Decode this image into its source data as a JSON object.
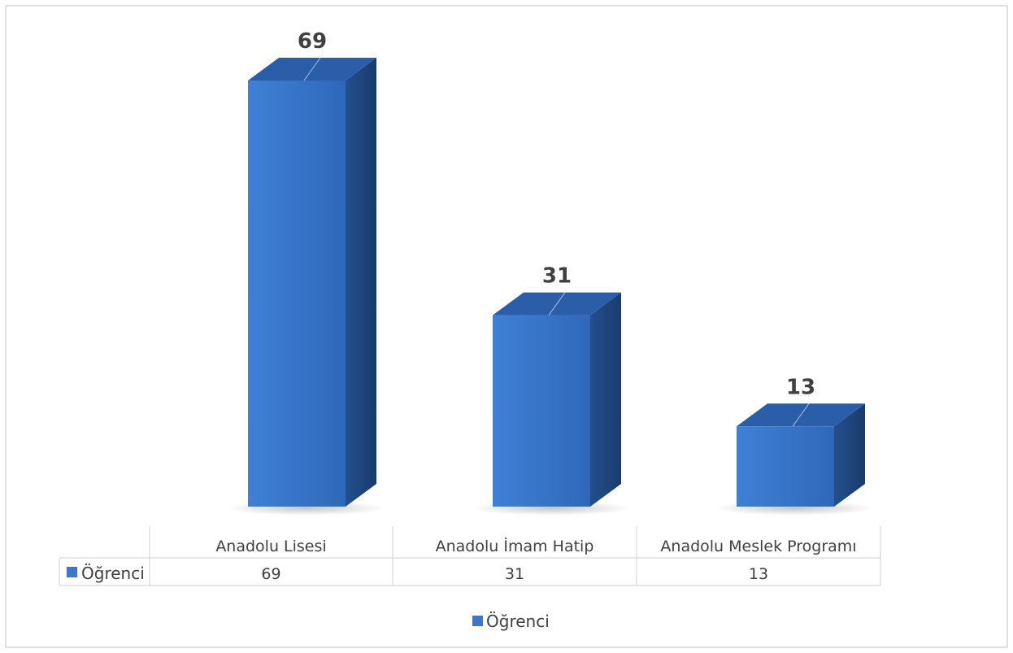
{
  "chart_data": {
    "type": "bar",
    "categories": [
      "Anadolu Lisesi",
      "Anadolu İmam Hatip",
      "Anadolu Meslek Programı"
    ],
    "series": [
      {
        "name": "Öğrenci",
        "values": [
          69,
          31,
          13
        ]
      }
    ],
    "data_labels": [
      "69",
      "31",
      "13"
    ],
    "table_row_label": "Öğrenci",
    "legend": {
      "label": "Öğrenci",
      "position": "bottom"
    },
    "grid": false,
    "bar_style": "3d",
    "colors": {
      "front": "#3a78cc",
      "top": "#2a5ea9",
      "side": "#1f447c",
      "frame": "#bfbfbf",
      "table_line": "#d0d0d0",
      "text": "#404040",
      "label": "#404040",
      "legend_marker": "#3a78cc"
    }
  }
}
